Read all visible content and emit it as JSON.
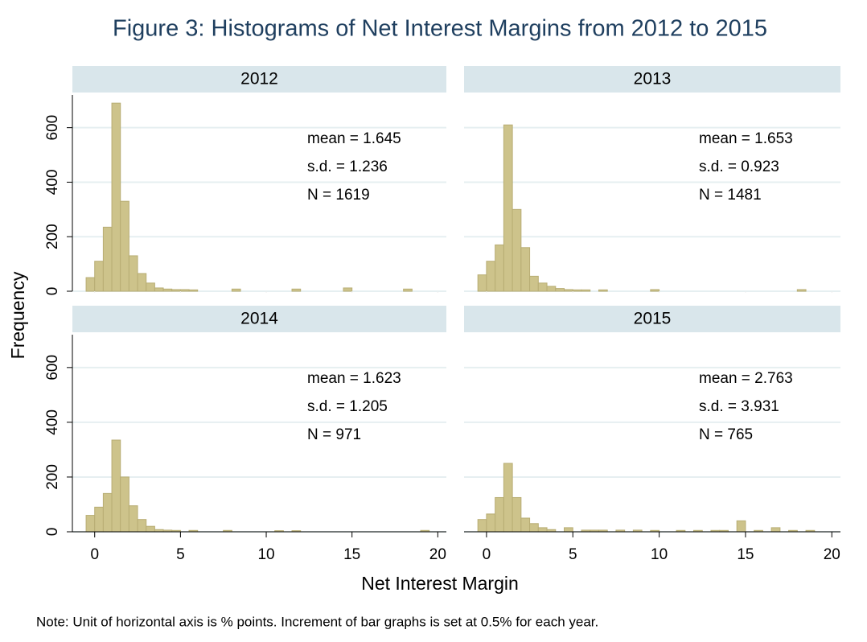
{
  "figure": {
    "title": "Figure 3:  Histograms of Net Interest Margins from 2012 to 2015",
    "x_label": "Net Interest Margin",
    "y_label": "Frequency",
    "note": "Note: Unit of horizontal axis is % points.  Increment of bar graphs is set at 0.5% for each year."
  },
  "chart_data": [
    {
      "type": "histogram",
      "title": "2012",
      "color": "#cdc38b",
      "grid": true,
      "bins": [
        -0.5,
        0,
        0.5,
        1,
        1.5,
        2,
        2.5,
        3,
        3.5,
        4,
        4.5,
        5,
        5.5,
        6,
        6.5,
        7,
        7.5,
        8,
        8.5,
        9,
        9.5,
        10,
        10.5,
        11,
        11.5,
        12,
        12.5,
        13,
        13.5,
        14,
        14.5,
        15,
        15.5,
        16,
        16.5,
        17,
        17.5,
        18,
        18.5,
        19,
        19.5,
        20
      ],
      "values": [
        50,
        110,
        235,
        690,
        330,
        130,
        65,
        30,
        12,
        8,
        6,
        6,
        5,
        0,
        0,
        0,
        0,
        8,
        0,
        0,
        0,
        0,
        0,
        0,
        8,
        0,
        0,
        0,
        0,
        0,
        12,
        0,
        0,
        0,
        0,
        0,
        0,
        8,
        0,
        0,
        0
      ],
      "xlim": [
        -1.3,
        20.5
      ],
      "ylim": [
        0,
        720
      ],
      "xticks": [
        0,
        5,
        10,
        15,
        20
      ],
      "yticks": [
        0,
        200,
        400,
        600
      ],
      "annotations": [
        "mean = 1.645",
        "s.d. = 1.236",
        "N = 1619"
      ]
    },
    {
      "type": "histogram",
      "title": "2013",
      "color": "#cdc38b",
      "grid": true,
      "bins": [
        -0.5,
        0,
        0.5,
        1,
        1.5,
        2,
        2.5,
        3,
        3.5,
        4,
        4.5,
        5,
        5.5,
        6,
        6.5,
        7,
        7.5,
        8,
        8.5,
        9,
        9.5,
        10,
        10.5,
        11,
        11.5,
        12,
        12.5,
        13,
        13.5,
        14,
        14.5,
        15,
        15.5,
        16,
        16.5,
        17,
        17.5,
        18,
        18.5,
        19,
        19.5,
        20
      ],
      "values": [
        60,
        110,
        170,
        610,
        300,
        160,
        55,
        30,
        18,
        10,
        6,
        5,
        5,
        0,
        5,
        0,
        0,
        0,
        0,
        0,
        6,
        0,
        0,
        0,
        0,
        0,
        0,
        0,
        0,
        0,
        0,
        0,
        0,
        0,
        0,
        0,
        0,
        6,
        0,
        0,
        0
      ],
      "xlim": [
        -1.3,
        20.5
      ],
      "ylim": [
        0,
        720
      ],
      "xticks": [
        0,
        5,
        10,
        15,
        20
      ],
      "yticks": [
        0,
        200,
        400,
        600
      ],
      "annotations": [
        "mean = 1.653",
        "s.d. = 0.923",
        "N = 1481"
      ]
    },
    {
      "type": "histogram",
      "title": "2014",
      "color": "#cdc38b",
      "grid": true,
      "bins": [
        -0.5,
        0,
        0.5,
        1,
        1.5,
        2,
        2.5,
        3,
        3.5,
        4,
        4.5,
        5,
        5.5,
        6,
        6.5,
        7,
        7.5,
        8,
        8.5,
        9,
        9.5,
        10,
        10.5,
        11,
        11.5,
        12,
        12.5,
        13,
        13.5,
        14,
        14.5,
        15,
        15.5,
        16,
        16.5,
        17,
        17.5,
        18,
        18.5,
        19,
        19.5,
        20
      ],
      "values": [
        60,
        90,
        140,
        335,
        200,
        95,
        45,
        20,
        8,
        6,
        5,
        0,
        5,
        0,
        0,
        0,
        5,
        0,
        0,
        0,
        0,
        0,
        4,
        0,
        4,
        0,
        0,
        0,
        0,
        0,
        0,
        0,
        0,
        0,
        0,
        0,
        0,
        0,
        0,
        5,
        0
      ],
      "xlim": [
        -1.3,
        20.5
      ],
      "ylim": [
        0,
        720
      ],
      "xticks": [
        0,
        5,
        10,
        15,
        20
      ],
      "yticks": [
        0,
        200,
        400,
        600
      ],
      "annotations": [
        "mean = 1.623",
        "s.d. = 1.205",
        "N = 971"
      ]
    },
    {
      "type": "histogram",
      "title": "2015",
      "color": "#cdc38b",
      "grid": true,
      "bins": [
        -0.5,
        0,
        0.5,
        1,
        1.5,
        2,
        2.5,
        3,
        3.5,
        4,
        4.5,
        5,
        5.5,
        6,
        6.5,
        7,
        7.5,
        8,
        8.5,
        9,
        9.5,
        10,
        10.5,
        11,
        11.5,
        12,
        12.5,
        13,
        13.5,
        14,
        14.5,
        15,
        15.5,
        16,
        16.5,
        17,
        17.5,
        18,
        18.5,
        19,
        19.5,
        20
      ],
      "values": [
        45,
        65,
        125,
        250,
        125,
        50,
        30,
        15,
        8,
        0,
        15,
        0,
        6,
        6,
        6,
        0,
        6,
        0,
        6,
        0,
        5,
        0,
        0,
        5,
        0,
        5,
        0,
        5,
        5,
        0,
        40,
        0,
        5,
        0,
        15,
        0,
        5,
        0,
        5,
        0,
        0
      ],
      "xlim": [
        -1.3,
        20.5
      ],
      "ylim": [
        0,
        720
      ],
      "xticks": [
        0,
        5,
        10,
        15,
        20
      ],
      "yticks": [
        0,
        200,
        400,
        600
      ],
      "annotations": [
        "mean = 2.763",
        "s.d. = 3.931",
        "N = 765"
      ]
    }
  ]
}
